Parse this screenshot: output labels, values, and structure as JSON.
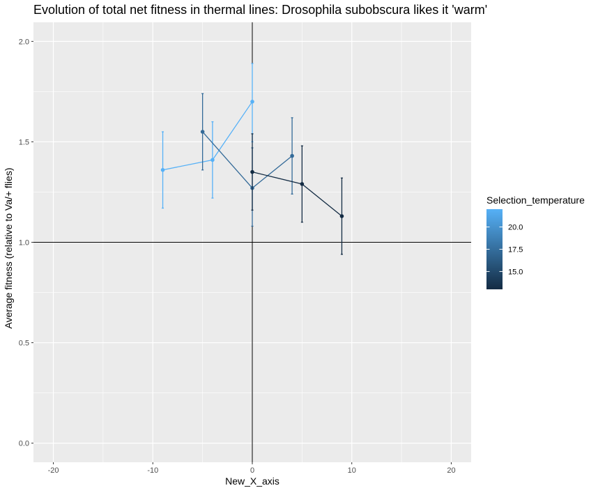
{
  "chart_data": {
    "type": "line",
    "title": "Evolution of total net fitness in thermal lines: Drosophila subobscura likes it 'warm'",
    "xlabel": "New_X_axis",
    "ylabel": "Average fitness (relative to Va/+ flies)",
    "xlim": [
      -22,
      22
    ],
    "ylim": [
      -0.095,
      2.095
    ],
    "x_ticks": [
      -20,
      -10,
      0,
      10,
      20
    ],
    "x_tick_labels": [
      "-20",
      "-10",
      "0",
      "10",
      "20"
    ],
    "y_ticks": [
      0.0,
      0.5,
      1.0,
      1.5,
      2.0
    ],
    "y_tick_labels": [
      "0.0",
      "0.5",
      "1.0",
      "1.5",
      "2.0"
    ],
    "reference_lines": {
      "x": 0,
      "y": 1.0
    },
    "grid": true,
    "panel_background": "#ebebeb",
    "series": [
      {
        "selection_temperature": 22,
        "color": "#56b1f7",
        "points": [
          {
            "x": -9,
            "y": 1.36,
            "ymin": 1.17,
            "ymax": 1.55
          },
          {
            "x": -4,
            "y": 1.41,
            "ymin": 1.22,
            "ymax": 1.6
          },
          {
            "x": 0,
            "y": 1.7,
            "ymin": 1.5,
            "ymax": 1.89
          }
        ]
      },
      {
        "selection_temperature": 18,
        "color": "#336a98",
        "points": [
          {
            "x": -5,
            "y": 1.55,
            "ymin": 1.36,
            "ymax": 1.74
          },
          {
            "x": 0,
            "y": 1.27,
            "ymin": 1.08,
            "ymax": 1.47
          },
          {
            "x": 4,
            "y": 1.43,
            "ymin": 1.24,
            "ymax": 1.62
          }
        ]
      },
      {
        "selection_temperature": 13,
        "color": "#132b43",
        "points": [
          {
            "x": 0,
            "y": 1.35,
            "ymin": 1.16,
            "ymax": 1.54
          },
          {
            "x": 5,
            "y": 1.29,
            "ymin": 1.1,
            "ymax": 1.48
          },
          {
            "x": 9,
            "y": 1.13,
            "ymin": 0.94,
            "ymax": 1.32
          }
        ]
      }
    ],
    "legend": {
      "title": "Selection_temperature",
      "placement": "right",
      "color_scale": {
        "min": 13,
        "max": 22,
        "low_color": "#132b43",
        "high_color": "#56b1f7"
      },
      "labels": [
        "20.0",
        "17.5",
        "15.0"
      ],
      "label_values": [
        20.0,
        17.5,
        15.0
      ]
    }
  }
}
